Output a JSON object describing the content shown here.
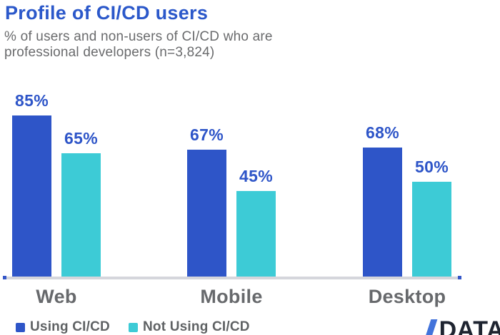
{
  "chart_data": {
    "type": "bar",
    "title": "Profile of CI/CD users",
    "subtitle": "% of users and non-users of CI/CD who are professional developers (n=3,824)",
    "categories": [
      "Web",
      "Mobile",
      "Desktop"
    ],
    "series": [
      {
        "name": "Using CI/CD",
        "color": "#2E55C8",
        "values": [
          85,
          67,
          68
        ]
      },
      {
        "name": "Not Using CI/CD",
        "color": "#3DCBD6",
        "values": [
          65,
          45,
          50
        ]
      }
    ],
    "value_suffix": "%",
    "ylim": [
      0,
      100
    ],
    "grid": false,
    "legend_position": "bottom-left",
    "axis_line_color": "#D5D6DC",
    "axis_endcap_color": "#3557C8"
  },
  "colors": {
    "background": "#FFFFFF",
    "title": "#2B58CA",
    "subtitle": "#6A6B6D",
    "value_label": "#2E55C8",
    "category_label": "#67696C",
    "legend_text": "#5F6264",
    "logo_text": "#1E2430",
    "logo_slash": "#4273DB"
  },
  "logo": {
    "slash_icon": "slash",
    "text": "DATA"
  }
}
